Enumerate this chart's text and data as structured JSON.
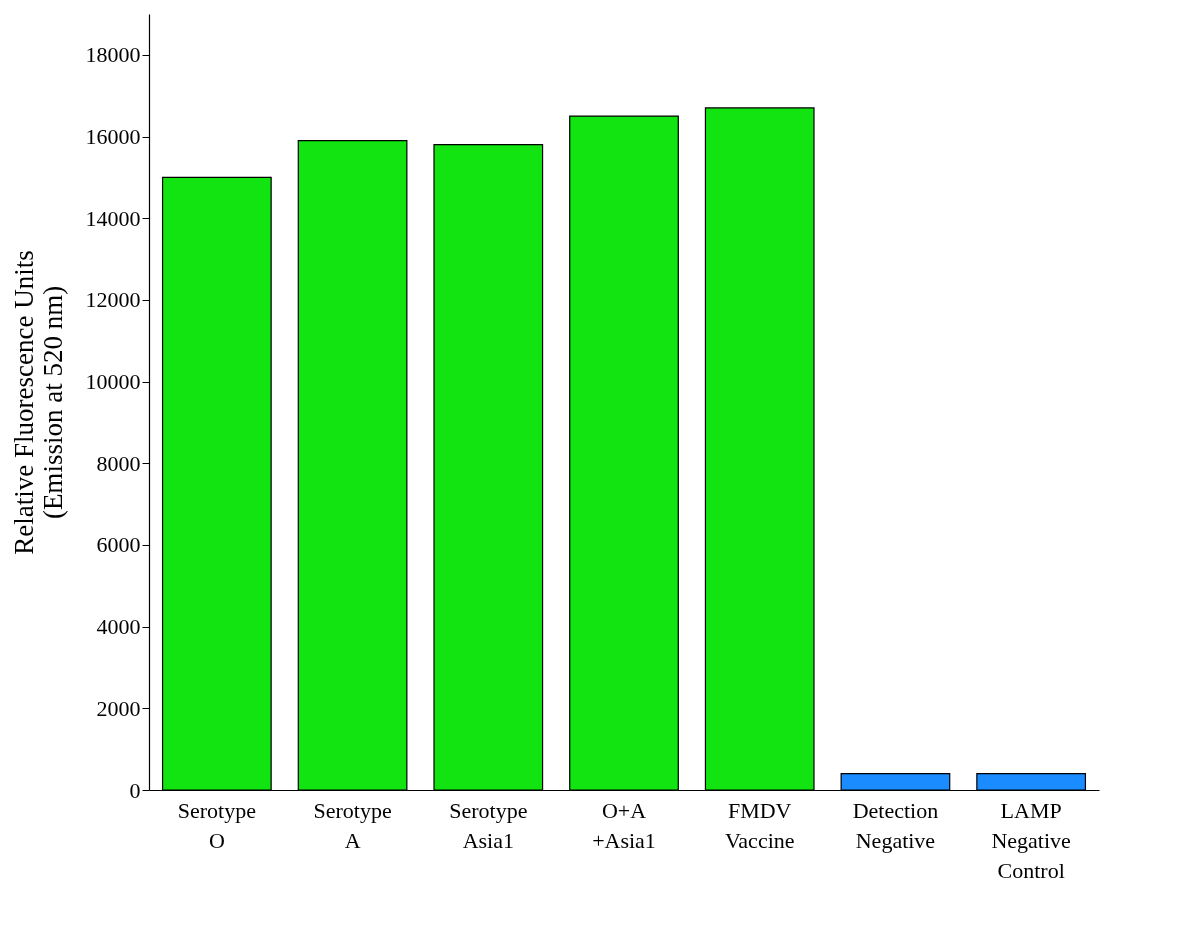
{
  "chart_data": {
    "type": "bar",
    "ylabel": "Relative Fluorescence Units\n(Emission at 520 nm)",
    "categories": [
      "Serotype O",
      "Serotype A",
      "Serotype Asia1",
      "O+A +Asia1",
      "FMDV Vaccine",
      "Detection Negative",
      "LAMP Negative Control"
    ],
    "values": [
      15000,
      15900,
      15800,
      16500,
      16700,
      400,
      400
    ],
    "colors": [
      "#11e411",
      "#11e411",
      "#11e411",
      "#11e411",
      "#11e411",
      "#1a8cff",
      "#1a8cff"
    ],
    "ylim": [
      0,
      19000
    ],
    "yticks": [
      0,
      2000,
      4000,
      6000,
      8000,
      10000,
      12000,
      14000,
      16000,
      18000
    ],
    "grid": false
  }
}
